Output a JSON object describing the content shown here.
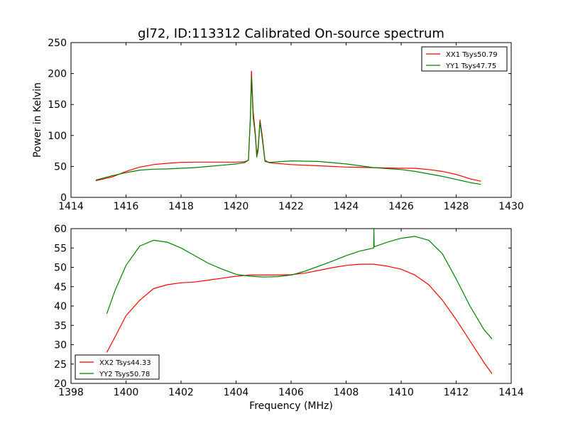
{
  "chart_data": [
    {
      "type": "line",
      "title": "gl72, ID:113312 Calibrated On-source spectrum",
      "xlabel": "",
      "ylabel": "Power in Kelvin",
      "xlim": [
        1414,
        1430
      ],
      "ylim": [
        0,
        250
      ],
      "xticks": [
        "1414",
        "1416",
        "1418",
        "1420",
        "1422",
        "1424",
        "1426",
        "1428",
        "1430"
      ],
      "yticks": [
        "0",
        "50",
        "100",
        "150",
        "200",
        "250"
      ],
      "grid": false,
      "legend_position": "top-right",
      "series": [
        {
          "name": "XX1 Tsys50.79",
          "color": "#ff0000",
          "x": [
            1414.9,
            1415.5,
            1416,
            1416.5,
            1417,
            1417.5,
            1418,
            1418.5,
            1419,
            1419.5,
            1420,
            1420.3,
            1420.45,
            1420.52,
            1420.56,
            1420.62,
            1420.7,
            1420.75,
            1420.8,
            1420.87,
            1420.95,
            1421.05,
            1421.2,
            1422,
            1423,
            1424,
            1425,
            1426,
            1426.5,
            1427,
            1427.5,
            1428,
            1428.5,
            1428.9
          ],
          "y": [
            27,
            33,
            42,
            49,
            53,
            55,
            56.5,
            57,
            57,
            57,
            57,
            57.5,
            60,
            130,
            204,
            140,
            104,
            70,
            80,
            125,
            100,
            60,
            56,
            53,
            51,
            49,
            48,
            47,
            47,
            45,
            42,
            37,
            30,
            26
          ]
        },
        {
          "name": "YY1 Tsys47.75",
          "color": "#008000",
          "x": [
            1414.9,
            1415.5,
            1416,
            1416.5,
            1417,
            1417.5,
            1418,
            1418.5,
            1419,
            1419.5,
            1420,
            1420.3,
            1420.45,
            1420.52,
            1420.56,
            1420.62,
            1420.7,
            1420.75,
            1420.8,
            1420.87,
            1420.95,
            1421.05,
            1421.2,
            1422,
            1423,
            1424,
            1425,
            1426,
            1426.5,
            1427,
            1427.5,
            1428,
            1428.5,
            1428.9
          ],
          "y": [
            28,
            35,
            40,
            44,
            45.5,
            46,
            47,
            48,
            50,
            52,
            54,
            56,
            60,
            125,
            194,
            130,
            100,
            65,
            75,
            122,
            95,
            58,
            56.5,
            59,
            58,
            54,
            48,
            45,
            42,
            38,
            34,
            29,
            24,
            21
          ]
        }
      ]
    },
    {
      "type": "line",
      "title": "",
      "xlabel": "Frequency (MHz)",
      "ylabel": "",
      "xlim": [
        1398,
        1414
      ],
      "ylim": [
        20,
        60
      ],
      "xticks": [
        "1398",
        "1400",
        "1402",
        "1404",
        "1406",
        "1408",
        "1410",
        "1412",
        "1414"
      ],
      "yticks": [
        "20",
        "25",
        "30",
        "35",
        "40",
        "45",
        "50",
        "55",
        "60"
      ],
      "grid": false,
      "legend_position": "bottom-left",
      "series": [
        {
          "name": "XX2 Tsys44.33",
          "color": "#ff0000",
          "x": [
            1399.3,
            1399.6,
            1400,
            1400.5,
            1401,
            1401.5,
            1402,
            1402.5,
            1403,
            1403.5,
            1404,
            1404.5,
            1405,
            1405.5,
            1406,
            1406.5,
            1407,
            1407.5,
            1408,
            1408.5,
            1409,
            1409.5,
            1410,
            1410.5,
            1411,
            1411.5,
            1412,
            1412.5,
            1413,
            1413.3
          ],
          "y": [
            28,
            32,
            37.5,
            41.5,
            44.5,
            45.5,
            46,
            46.2,
            46.7,
            47.2,
            47.7,
            48,
            48,
            48,
            48.1,
            48.5,
            49.2,
            49.9,
            50.5,
            50.8,
            50.8,
            50.3,
            49.5,
            48,
            45.5,
            41.5,
            36.5,
            31,
            25.5,
            22.5
          ]
        },
        {
          "name": "YY2 Tsys50.78",
          "color": "#008000",
          "x": [
            1399.3,
            1399.6,
            1400,
            1400.5,
            1401,
            1401.5,
            1402,
            1402.5,
            1403,
            1403.5,
            1404,
            1404.5,
            1405,
            1405.5,
            1406,
            1406.5,
            1407,
            1407.5,
            1408,
            1408.5,
            1409,
            1409.01,
            1409.02,
            1409.5,
            1410,
            1410.5,
            1411,
            1411.5,
            1412,
            1412.5,
            1413,
            1413.3
          ],
          "y": [
            38,
            44,
            50.5,
            55.5,
            57,
            56.5,
            55,
            53,
            51,
            49.5,
            48.2,
            47.7,
            47.5,
            47.6,
            48,
            49,
            50.3,
            51.6,
            53,
            54.2,
            55,
            60,
            55.3,
            56.5,
            57.5,
            58,
            57,
            53.5,
            47,
            40,
            34,
            31.5
          ]
        }
      ]
    }
  ]
}
